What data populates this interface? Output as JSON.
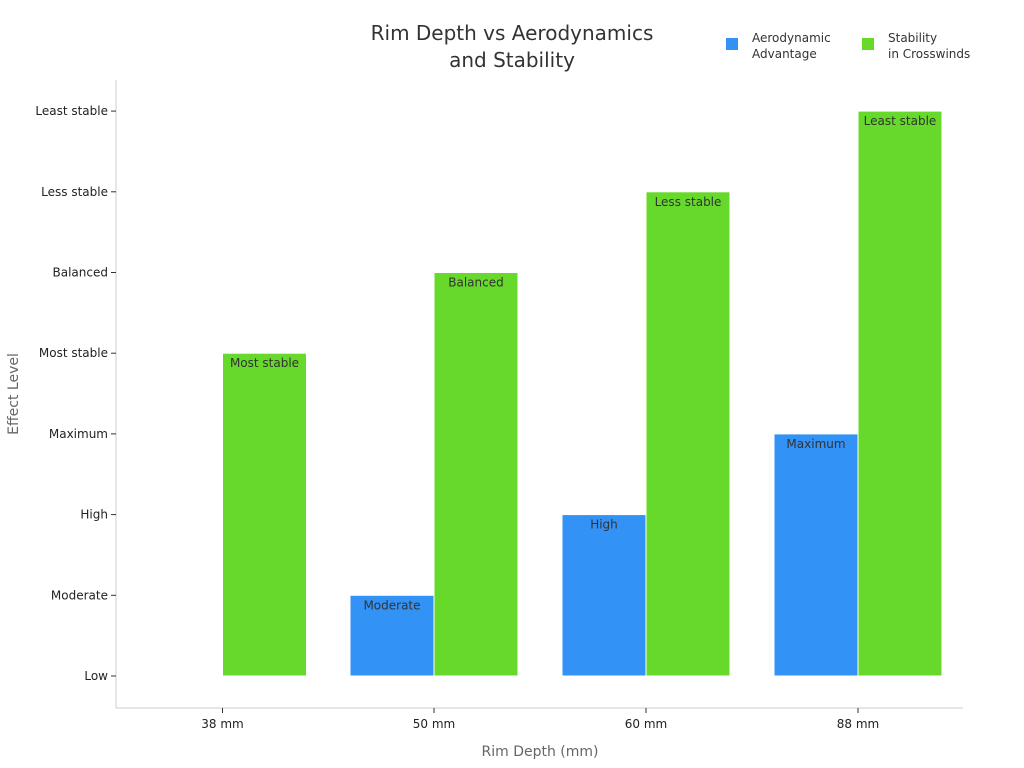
{
  "chart_data": {
    "type": "bar",
    "title": "Rim Depth vs Aerodynamics\nand Stability",
    "xlabel": "Rim Depth (mm)",
    "ylabel": "Effect Level",
    "categories": [
      "38 mm",
      "50 mm",
      "60 mm",
      "88 mm"
    ],
    "y_levels": [
      "Low",
      "Moderate",
      "High",
      "Maximum",
      "Most stable",
      "Balanced",
      "Less stable",
      "Least stable"
    ],
    "series": [
      {
        "name": "Aerodynamic\nAdvantage",
        "color": "#3392f5",
        "values": [
          "Low",
          "Moderate",
          "High",
          "Maximum"
        ],
        "labels": [
          "",
          "Moderate",
          "High",
          "Maximum"
        ]
      },
      {
        "name": "Stability\nin Crosswinds",
        "color": "#66d92b",
        "values": [
          "Most stable",
          "Balanced",
          "Less stable",
          "Least stable"
        ],
        "labels": [
          "Most stable",
          "Balanced",
          "Less stable",
          "Least stable"
        ]
      }
    ],
    "legend_position": "top-right",
    "grid": false
  }
}
